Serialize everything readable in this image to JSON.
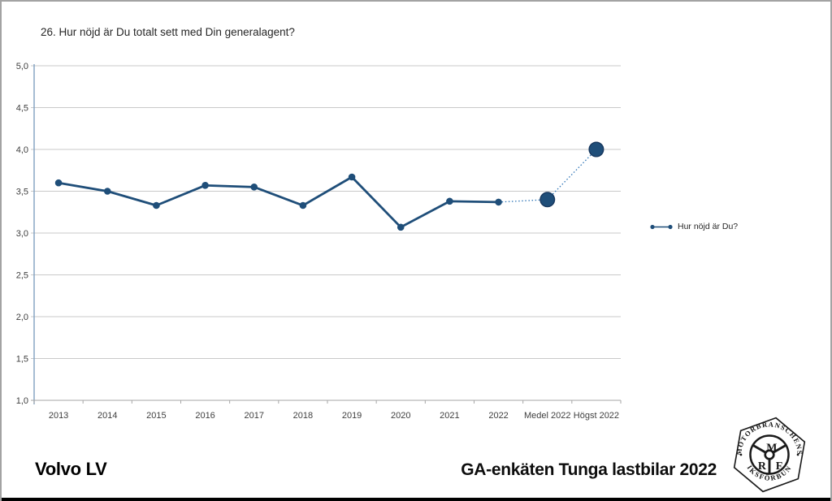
{
  "title": "26. Hur nöjd är Du totalt sett med Din generalagent?",
  "legend": {
    "label": "Hur nöjd är Du?"
  },
  "footer": {
    "left": "Volvo LV",
    "right": "GA-enkäten Tunga lastbilar 2022"
  },
  "logo": {
    "top_text": "MOTORBRANSCHENS",
    "bottom_text": "RIKSFÖRBUND",
    "letters": [
      "M",
      "R",
      "F"
    ]
  },
  "chart_data": {
    "type": "line",
    "title": "26. Hur nöjd är Du totalt sett med Din generalagent?",
    "categories": [
      "2013",
      "2014",
      "2015",
      "2016",
      "2017",
      "2018",
      "2019",
      "2020",
      "2021",
      "2022",
      "Medel 2022",
      "Högst 2022"
    ],
    "series": [
      {
        "name": "Hur nöjd är Du?",
        "values": [
          3.6,
          3.5,
          3.33,
          3.57,
          3.55,
          3.33,
          3.67,
          3.07,
          3.38,
          3.37,
          3.4,
          4.0
        ]
      }
    ],
    "solid_until_index": 9,
    "big_point_indices": [
      10,
      11
    ],
    "ylim": [
      1.0,
      5.0
    ],
    "ytick_step": 0.5,
    "ytick_labels": [
      "1,0",
      "1,5",
      "2,0",
      "2,5",
      "3,0",
      "3,5",
      "4,0",
      "4,5",
      "5,0"
    ],
    "xlabel": "",
    "ylabel": "",
    "grid": true,
    "legend_position": "right",
    "line_color": "#1f4e79",
    "point_stroke": "#17375e",
    "dotted_color": "#2e75b6",
    "gridline_color": "#c9c9c9",
    "xaxis_color": "#a6a6a6",
    "yaxis_color": "#7f9fc0",
    "tick_color": "#3f3f3f"
  }
}
